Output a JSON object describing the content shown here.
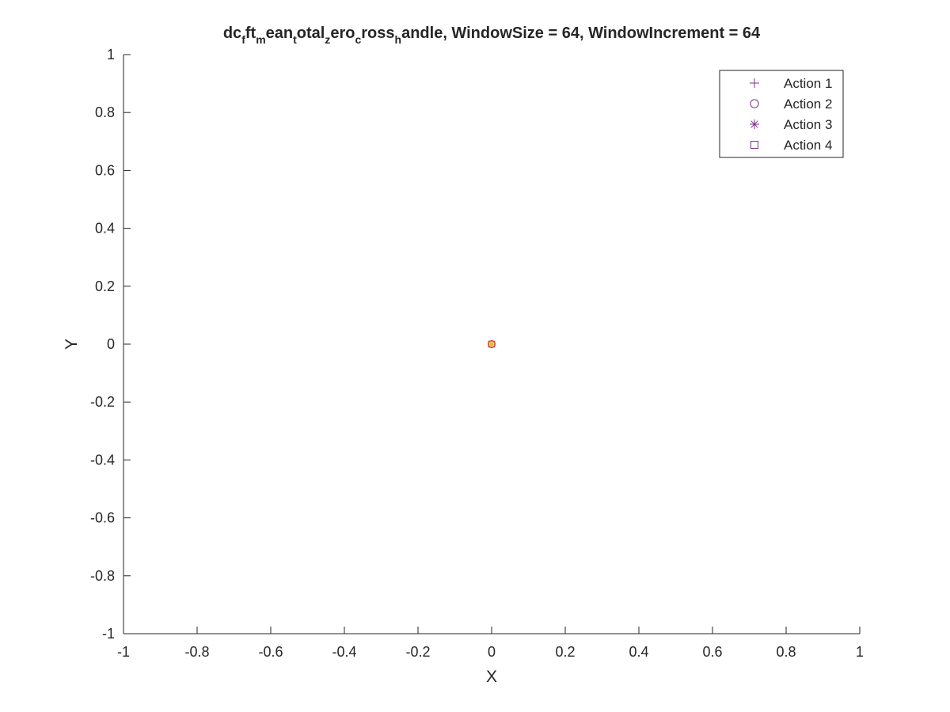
{
  "chart_data": {
    "type": "scatter",
    "title": {
      "segments": [
        {
          "text": "dc",
          "sub": false
        },
        {
          "text": "f",
          "sub": true
        },
        {
          "text": "ft",
          "sub": false
        },
        {
          "text": "m",
          "sub": true
        },
        {
          "text": "ean",
          "sub": false
        },
        {
          "text": "t",
          "sub": true
        },
        {
          "text": "otal",
          "sub": false
        },
        {
          "text": "z",
          "sub": true
        },
        {
          "text": "ero",
          "sub": false
        },
        {
          "text": "c",
          "sub": true
        },
        {
          "text": "ross",
          "sub": false
        },
        {
          "text": "h",
          "sub": true
        },
        {
          "text": "andle, WindowSize = 64, WindowIncrement = 64",
          "sub": false
        }
      ]
    },
    "xlabel": "X",
    "ylabel": "Y",
    "xlim": [
      -1,
      1
    ],
    "ylim": [
      -1,
      1
    ],
    "xticks": [
      -1,
      -0.8,
      -0.6,
      -0.4,
      -0.2,
      0,
      0.2,
      0.4,
      0.6,
      0.8,
      1
    ],
    "yticks": [
      -1,
      -0.8,
      -0.6,
      -0.4,
      -0.2,
      0,
      0.2,
      0.4,
      0.6,
      0.8,
      1
    ],
    "xtick_labels": [
      "-1",
      "-0.8",
      "-0.6",
      "-0.4",
      "-0.2",
      "0",
      "0.2",
      "0.4",
      "0.6",
      "0.8",
      "1"
    ],
    "ytick_labels": [
      "-1",
      "-0.8",
      "-0.6",
      "-0.4",
      "-0.2",
      "0",
      "0.2",
      "0.4",
      "0.6",
      "0.8",
      "1"
    ],
    "grid": false,
    "legend_position": "top-right",
    "series": [
      {
        "name": "Action 1",
        "marker": "plus",
        "color": "#7E2F8E",
        "points": [
          [
            0,
            0
          ]
        ]
      },
      {
        "name": "Action 2",
        "marker": "circle",
        "color": "#7E2F8E",
        "points": [
          [
            0,
            0
          ]
        ]
      },
      {
        "name": "Action 3",
        "marker": "asterisk",
        "color": "#7E2F8E",
        "points": [
          [
            0,
            0
          ]
        ]
      },
      {
        "name": "Action 4",
        "marker": "square",
        "color": "#7E2F8E",
        "points": [
          [
            0,
            0
          ]
        ]
      }
    ],
    "point_overlay_colors": [
      "#D95319",
      "#EDB120"
    ]
  }
}
